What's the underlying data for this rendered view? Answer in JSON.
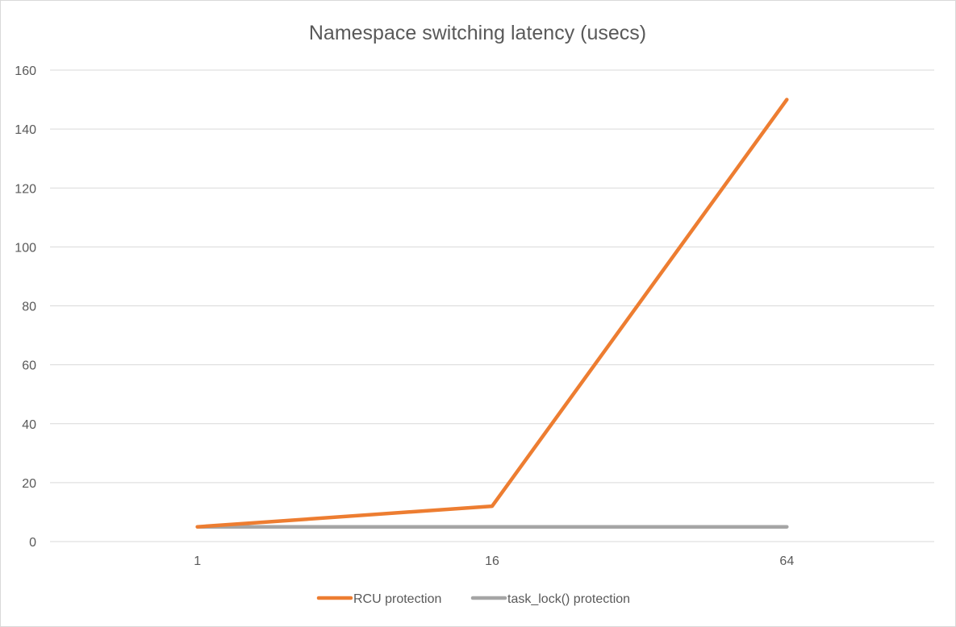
{
  "chart_data": {
    "type": "line",
    "title": "Namespace switching latency (usecs)",
    "xlabel": "",
    "ylabel": "",
    "categories": [
      "1",
      "16",
      "64"
    ],
    "ylim": [
      0,
      160
    ],
    "yticks": [
      0,
      20,
      40,
      60,
      80,
      100,
      120,
      140,
      160
    ],
    "grid": true,
    "legend_position": "bottom",
    "series": [
      {
        "name": "RCU protection",
        "values": [
          5,
          12,
          150
        ],
        "color": "#ED7D31"
      },
      {
        "name": "task_lock() protection",
        "values": [
          5,
          5,
          5
        ],
        "color": "#A5A5A5"
      }
    ]
  }
}
